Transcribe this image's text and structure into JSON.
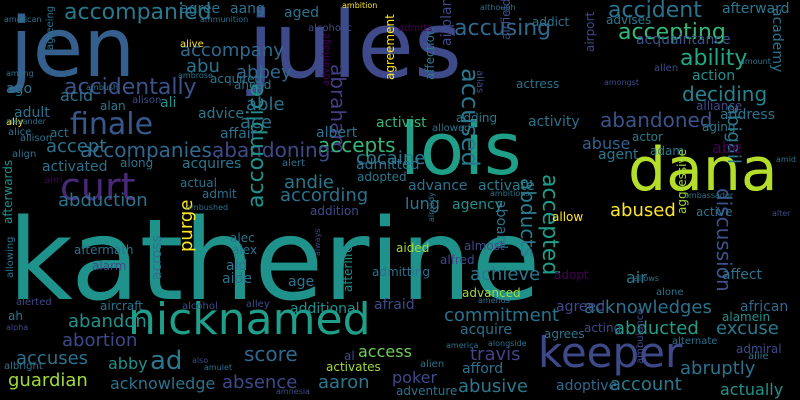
{
  "words": [
    {
      "text": "katherine",
      "color": "#20928c"
    },
    {
      "text": "jules",
      "color": "#3e4a89"
    },
    {
      "text": "jen",
      "color": "#35608d"
    },
    {
      "text": "lois",
      "color": "#1f9f88"
    },
    {
      "text": "dana",
      "color": "#b5de2b"
    },
    {
      "text": "nicknamed",
      "color": "#1f9e89"
    },
    {
      "text": "keeper",
      "color": "#3e4989"
    },
    {
      "text": "curt",
      "color": "#482878"
    },
    {
      "text": "finale",
      "color": "#38588c"
    },
    {
      "text": "accompanied",
      "color": "#2a788e"
    },
    {
      "text": "accident",
      "color": "#2c728e"
    },
    {
      "text": "accepting",
      "color": "#35b779"
    },
    {
      "text": "accusing",
      "color": "#31688e"
    },
    {
      "text": "accused",
      "color": "#2a788e"
    },
    {
      "text": "accompany",
      "color": "#306a8e"
    },
    {
      "text": "accidentally",
      "color": "#3b528b"
    },
    {
      "text": "abbey",
      "color": "#31688e"
    },
    {
      "text": "abraham",
      "color": "#433e85"
    },
    {
      "text": "ability",
      "color": "#22a884"
    },
    {
      "text": "cocaine",
      "color": "#2a788e"
    },
    {
      "text": "deciding",
      "color": "#26828e"
    },
    {
      "text": "abandoned",
      "color": "#3b528b"
    },
    {
      "text": "accepts",
      "color": "#35b779"
    },
    {
      "text": "abandoning",
      "color": "#3e4a89"
    },
    {
      "text": "accompanies",
      "color": "#31688e"
    },
    {
      "text": "accept",
      "color": "#2c728e"
    },
    {
      "text": "accomplice",
      "color": "#21918c"
    },
    {
      "text": "according",
      "color": "#2c728e"
    },
    {
      "text": "abducts",
      "color": "#287c8e"
    },
    {
      "text": "accepted",
      "color": "#1f9e89"
    },
    {
      "text": "discussion",
      "color": "#3b528b"
    },
    {
      "text": "abigail",
      "color": "#2a788e"
    },
    {
      "text": "abduction",
      "color": "#2c728e"
    },
    {
      "text": "abused",
      "color": "#fde725"
    },
    {
      "text": "abe",
      "color": "#440154"
    },
    {
      "text": "purge",
      "color": "#fde725"
    },
    {
      "text": "achieve",
      "color": "#2a788e"
    },
    {
      "text": "abandon",
      "color": "#21918c"
    },
    {
      "text": "commitment",
      "color": "#2c728e"
    },
    {
      "text": "acknowledges",
      "color": "#2c728e"
    },
    {
      "text": "abducted",
      "color": "#1f9e89"
    },
    {
      "text": "excuse",
      "color": "#2a788e"
    },
    {
      "text": "african",
      "color": "#31688e"
    },
    {
      "text": "abortion",
      "color": "#3e4989"
    },
    {
      "text": "ad",
      "color": "#2a788e"
    },
    {
      "text": "score",
      "color": "#31688e"
    },
    {
      "text": "access",
      "color": "#6ece58"
    },
    {
      "text": "travis",
      "color": "#414487"
    },
    {
      "text": "abruptly",
      "color": "#2c728e"
    },
    {
      "text": "accuses",
      "color": "#2c728e"
    },
    {
      "text": "abby",
      "color": "#21918c"
    },
    {
      "text": "guardian",
      "color": "#a0da39"
    },
    {
      "text": "acknowledge",
      "color": "#2c728e"
    },
    {
      "text": "absence",
      "color": "#3e4a89"
    },
    {
      "text": "aaron",
      "color": "#2a788e"
    },
    {
      "text": "poker",
      "color": "#3e4a89"
    },
    {
      "text": "abusive",
      "color": "#2a788e"
    },
    {
      "text": "account",
      "color": "#2a788e"
    },
    {
      "text": "actually",
      "color": "#21918c"
    },
    {
      "text": "adoptive",
      "color": "#31688e"
    },
    {
      "text": "advanced",
      "color": "#a0da39"
    },
    {
      "text": "additional",
      "color": "#21918c"
    },
    {
      "text": "afraid",
      "color": "#3e4a89"
    },
    {
      "text": "agreed",
      "color": "#3e4a89"
    },
    {
      "text": "activate",
      "color": "#287c8e"
    },
    {
      "text": "advance",
      "color": "#2c728e"
    },
    {
      "text": "abuse",
      "color": "#35608d"
    },
    {
      "text": "agency",
      "color": "#21918c"
    },
    {
      "text": "lung",
      "color": "#2a788e"
    },
    {
      "text": "andie",
      "color": "#2a788e"
    },
    {
      "text": "activated",
      "color": "#2c728e"
    },
    {
      "text": "acquires",
      "color": "#2a788e"
    },
    {
      "text": "actual",
      "color": "#2c728e"
    },
    {
      "text": "admitted",
      "color": "#2c728e"
    },
    {
      "text": "adopted",
      "color": "#2a788e"
    },
    {
      "text": "able",
      "color": "#2c728e"
    },
    {
      "text": "ace",
      "color": "#2c728e"
    },
    {
      "text": "acid",
      "color": "#2c728e"
    },
    {
      "text": "abu",
      "color": "#2c728e"
    },
    {
      "text": "acquired",
      "color": "#2a788e"
    },
    {
      "text": "advice",
      "color": "#2a788e"
    },
    {
      "text": "affair",
      "color": "#2c728e"
    },
    {
      "text": "albert",
      "color": "#2c728e"
    },
    {
      "text": "activist",
      "color": "#35b779"
    },
    {
      "text": "adding",
      "color": "#2a788e"
    },
    {
      "text": "activity",
      "color": "#2c728e"
    },
    {
      "text": "actor",
      "color": "#2a788e"
    },
    {
      "text": "adam",
      "color": "#2a788e"
    },
    {
      "text": "agent",
      "color": "#2a788e"
    },
    {
      "text": "aging",
      "color": "#2a788e"
    },
    {
      "text": "address",
      "color": "#2c728e"
    },
    {
      "text": "alliance",
      "color": "#3e4a89"
    },
    {
      "text": "action",
      "color": "#21918c"
    },
    {
      "text": "academy",
      "color": "#2c728e"
    },
    {
      "text": "acquaintance",
      "color": "#3b528b"
    },
    {
      "text": "advises",
      "color": "#2a788e"
    },
    {
      "text": "addict",
      "color": "#2c728e"
    },
    {
      "text": "afterward",
      "color": "#2a788e"
    },
    {
      "text": "agree",
      "color": "#2c728e"
    },
    {
      "text": "aang",
      "color": "#2c728e"
    },
    {
      "text": "aged",
      "color": "#2c728e"
    },
    {
      "text": "ago",
      "color": "#2c728e"
    },
    {
      "text": "adult",
      "color": "#2c728e"
    },
    {
      "text": "act",
      "color": "#2c728e"
    },
    {
      "text": "alan",
      "color": "#2a788e"
    },
    {
      "text": "ali",
      "color": "#21918c"
    },
    {
      "text": "ahead",
      "color": "#2a788e"
    },
    {
      "text": "along",
      "color": "#2c728e"
    },
    {
      "text": "admit",
      "color": "#2c728e"
    },
    {
      "text": "aid",
      "color": "#2c728e"
    },
    {
      "text": "aide",
      "color": "#2c728e"
    },
    {
      "text": "age",
      "color": "#2a788e"
    },
    {
      "text": "alec",
      "color": "#2c728e"
    },
    {
      "text": "alex",
      "color": "#2c728e"
    },
    {
      "text": "across",
      "color": "#2c728e"
    },
    {
      "text": "aftermath",
      "color": "#2c728e"
    },
    {
      "text": "alarm",
      "color": "#3e4a89"
    },
    {
      "text": "afterwards",
      "color": "#21918c"
    },
    {
      "text": "afterlife",
      "color": "#21918c"
    },
    {
      "text": "addition",
      "color": "#3e4a89"
    },
    {
      "text": "aided",
      "color": "#a0da39"
    },
    {
      "text": "aboard",
      "color": "#2c728e"
    },
    {
      "text": "admitting",
      "color": "#2c728e"
    },
    {
      "text": "alfred",
      "color": "#3e4a89"
    },
    {
      "text": "almost",
      "color": "#3e4a89"
    },
    {
      "text": "adopt",
      "color": "#440154"
    },
    {
      "text": "air",
      "color": "#2a788e"
    },
    {
      "text": "affect",
      "color": "#2c728e"
    },
    {
      "text": "aggressive",
      "color": "#a0da39"
    },
    {
      "text": "allow",
      "color": "#fde725"
    },
    {
      "text": "active",
      "color": "#2c728e"
    },
    {
      "text": "acquire",
      "color": "#2c728e"
    },
    {
      "text": "agrees",
      "color": "#2c728e"
    },
    {
      "text": "acting",
      "color": "#3e4a89"
    },
    {
      "text": "alamein",
      "color": "#21918c"
    },
    {
      "text": "admiral",
      "color": "#3e4a89"
    },
    {
      "text": "afford",
      "color": "#2c728e"
    },
    {
      "text": "activates",
      "color": "#a0da39"
    },
    {
      "text": "adventure",
      "color": "#2c728e"
    },
    {
      "text": "alcohol",
      "color": "#3e4a89"
    },
    {
      "text": "alley",
      "color": "#3e4a89"
    },
    {
      "text": "aircraft",
      "color": "#2c728e"
    },
    {
      "text": "alert",
      "color": "#2c728e"
    },
    {
      "text": "allie",
      "color": "#2c728e"
    },
    {
      "text": "alternate",
      "color": "#2c728e"
    },
    {
      "text": "ambulance",
      "color": "#3e4a89"
    },
    {
      "text": "alone",
      "color": "#2c728e"
    },
    {
      "text": "allows",
      "color": "#2c728e"
    },
    {
      "text": "agreement",
      "color": "#fde725"
    },
    {
      "text": "affection",
      "color": "#2a788e"
    },
    {
      "text": "airplane",
      "color": "#3e4a89"
    },
    {
      "text": "airfield",
      "color": "#3e4a89"
    },
    {
      "text": "alias",
      "color": "#3e4a89"
    },
    {
      "text": "airport",
      "color": "#3e4a89"
    },
    {
      "text": "actress",
      "color": "#2c728e"
    },
    {
      "text": "allen",
      "color": "#3e4a89"
    },
    {
      "text": "amongst",
      "color": "#3e4a89"
    },
    {
      "text": "amount",
      "color": "#2c728e"
    },
    {
      "text": "admits",
      "color": "#440154"
    },
    {
      "text": "alcoholic",
      "color": "#3e4a89"
    },
    {
      "text": "alive",
      "color": "#fde725"
    },
    {
      "text": "ambush",
      "color": "#2c728e"
    },
    {
      "text": "ambrose",
      "color": "#2c728e"
    },
    {
      "text": "advantage",
      "color": "#440154"
    },
    {
      "text": "allowed",
      "color": "#2c728e"
    },
    {
      "text": "ambition",
      "color": "#fde725"
    },
    {
      "text": "although",
      "color": "#2c728e"
    },
    {
      "text": "ammunition",
      "color": "#2c728e"
    },
    {
      "text": "american",
      "color": "#2c728e"
    },
    {
      "text": "ally",
      "color": "#fde725"
    },
    {
      "text": "agreeing",
      "color": "#2c728e"
    },
    {
      "text": "among",
      "color": "#2c728e"
    },
    {
      "text": "allison",
      "color": "#2c728e"
    },
    {
      "text": "alison",
      "color": "#3e4a89"
    },
    {
      "text": "alexander",
      "color": "#2c728e"
    },
    {
      "text": "alice",
      "color": "#2c728e"
    },
    {
      "text": "align",
      "color": "#2c728e"
    },
    {
      "text": "aim",
      "color": "#440154"
    },
    {
      "text": "amid",
      "color": "#2c728e"
    },
    {
      "text": "alter",
      "color": "#3e4a89"
    },
    {
      "text": "ambassador",
      "color": "#2c728e"
    },
    {
      "text": "ambitious",
      "color": "#2c728e"
    },
    {
      "text": "already",
      "color": "#2c728e"
    },
    {
      "text": "always",
      "color": "#3e4a89"
    },
    {
      "text": "allowing",
      "color": "#2c728e"
    },
    {
      "text": "alerted",
      "color": "#3e4a89"
    },
    {
      "text": "ah",
      "color": "#2c728e"
    },
    {
      "text": "alpha",
      "color": "#3e4a89"
    },
    {
      "text": "also",
      "color": "#3e4a89"
    },
    {
      "text": "amulet",
      "color": "#2c728e"
    },
    {
      "text": "amnesia",
      "color": "#3e4a89"
    },
    {
      "text": "albright",
      "color": "#2c728e"
    },
    {
      "text": "al",
      "color": "#3e4a89"
    },
    {
      "text": "alongside",
      "color": "#2c728e"
    },
    {
      "text": "america",
      "color": "#2c728e"
    },
    {
      "text": "alien",
      "color": "#2c728e"
    },
    {
      "text": "amends",
      "color": "#2c728e"
    },
    {
      "text": "ambushed",
      "color": "#2c728e"
    }
  ]
}
